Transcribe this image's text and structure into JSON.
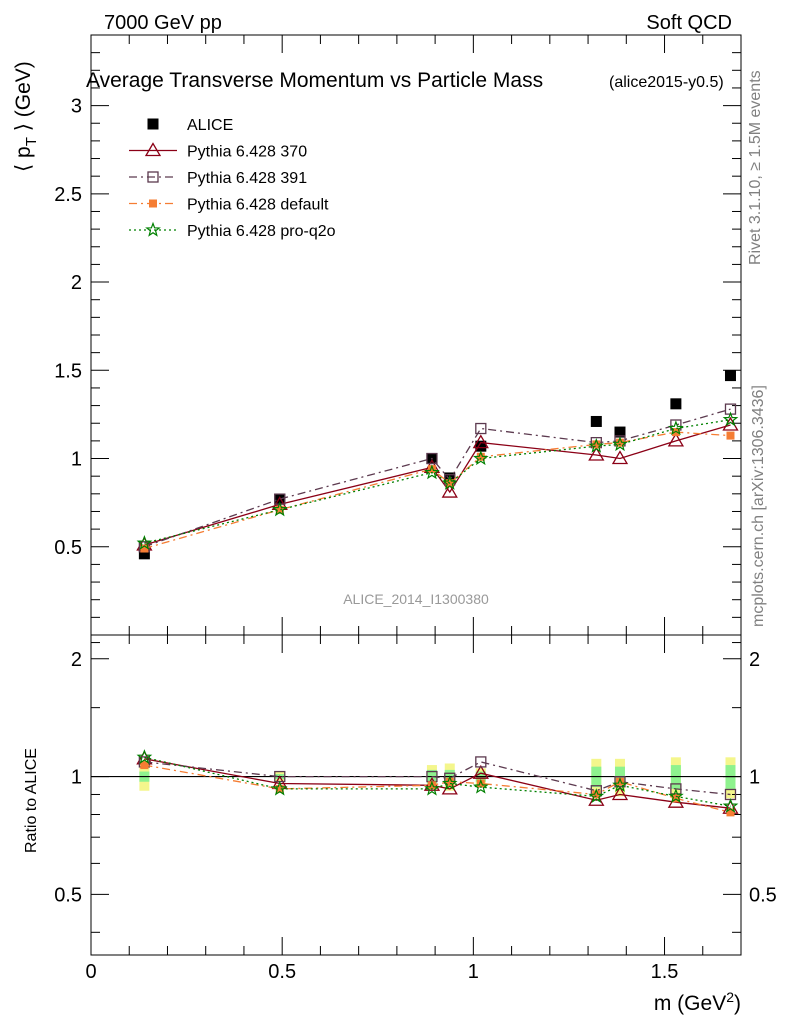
{
  "header": {
    "energy_label": "7000 GeV pp",
    "category_label": "Soft QCD",
    "rivet_label": "Rivet 3.1.10, ≥ 1.5M events",
    "mcplots_label": "mcplots.cern.ch [arXiv:1306.3436]"
  },
  "chart_data": [
    {
      "type": "scatter",
      "title": "Average Transverse Momentum vs Particle Mass",
      "subtitle": "(alice2015-y0.5)",
      "analysis_label": "ALICE_2014_I1300380",
      "xlabel": "m (GeV²)",
      "ylabel": "⟨ p_T ⟩ (GeV)",
      "xlim": [
        0,
        1.7
      ],
      "ylim": [
        0,
        3.4
      ],
      "y_ticks": [
        "0.5",
        "1",
        "1.5",
        "2",
        "2.5",
        "3"
      ],
      "x": [
        0.1396,
        0.4937,
        0.8917,
        0.9383,
        1.0195,
        1.3216,
        1.3835,
        1.5297,
        1.6725
      ],
      "series": [
        {
          "name": "ALICE",
          "marker": "square-filled",
          "color": "#000000",
          "line": "none",
          "values": [
            0.46,
            0.77,
            1.0,
            0.89,
            1.07,
            1.21,
            1.15,
            1.31,
            1.47
          ]
        },
        {
          "name": "Pythia 6.428 370",
          "marker": "triangle-open",
          "color": "#8b0016",
          "line": "solid",
          "values": [
            0.51,
            0.74,
            0.95,
            0.81,
            1.09,
            1.02,
            1.0,
            1.1,
            1.19
          ]
        },
        {
          "name": "Pythia 6.428 391",
          "marker": "square-open",
          "color": "#5c3a4f",
          "line": "dashdot",
          "values": [
            0.5,
            0.77,
            1.0,
            0.88,
            1.17,
            1.09,
            1.1,
            1.19,
            1.28
          ]
        },
        {
          "name": "Pythia 6.428 default",
          "marker": "square-filled-small",
          "color": "#f57d33",
          "line": "dashdot",
          "values": [
            0.49,
            0.71,
            0.94,
            0.86,
            1.01,
            1.08,
            1.09,
            1.15,
            1.13
          ]
        },
        {
          "name": "Pythia 6.428 pro-q2o",
          "marker": "star",
          "color": "#008000",
          "line": "dotted",
          "values": [
            0.52,
            0.71,
            0.92,
            0.86,
            1.0,
            1.07,
            1.08,
            1.17,
            1.22
          ]
        }
      ]
    },
    {
      "type": "scatter",
      "title": "",
      "xlabel": "m (GeV²)",
      "ylabel": "Ratio to ALICE",
      "xlim": [
        0,
        1.7
      ],
      "ylim": [
        0.35,
        2.3
      ],
      "y_scale": "log",
      "y_ticks": [
        "0.5",
        "1",
        "2"
      ],
      "x_ticks": [
        "0",
        "0.5",
        "1",
        "1.5"
      ],
      "x": [
        0.1396,
        0.4937,
        0.8917,
        0.9383,
        1.0195,
        1.3216,
        1.3835,
        1.5297,
        1.6725
      ],
      "uncertainty_band": {
        "stat_sys": [
          0.08,
          0.03,
          0.07,
          0.08,
          0.05,
          0.11,
          0.11,
          0.12,
          0.12
        ],
        "stat": [
          0.03,
          0.015,
          0.04,
          0.04,
          0.03,
          0.06,
          0.06,
          0.07,
          0.07
        ],
        "outer_color": "#f4f68c",
        "inner_color": "#8ef28e"
      },
      "series": [
        {
          "name": "Pythia 6.428 370",
          "marker": "triangle-open",
          "color": "#8b0016",
          "line": "solid",
          "values": [
            1.11,
            0.96,
            0.95,
            0.93,
            1.02,
            0.87,
            0.9,
            0.86,
            0.83
          ]
        },
        {
          "name": "Pythia 6.428 391",
          "marker": "square-open",
          "color": "#5c3a4f",
          "line": "dashdot",
          "values": [
            1.09,
            1.0,
            1.0,
            0.99,
            1.09,
            0.92,
            0.97,
            0.93,
            0.9
          ]
        },
        {
          "name": "Pythia 6.428 default",
          "marker": "square-filled-small",
          "color": "#f57d33",
          "line": "dashdot",
          "values": [
            1.07,
            0.93,
            0.95,
            0.97,
            0.96,
            0.9,
            0.97,
            0.88,
            0.81
          ]
        },
        {
          "name": "Pythia 6.428 pro-q2o",
          "marker": "star",
          "color": "#008000",
          "line": "dotted",
          "values": [
            1.12,
            0.93,
            0.93,
            0.96,
            0.94,
            0.89,
            0.95,
            0.89,
            0.84
          ]
        }
      ]
    }
  ]
}
